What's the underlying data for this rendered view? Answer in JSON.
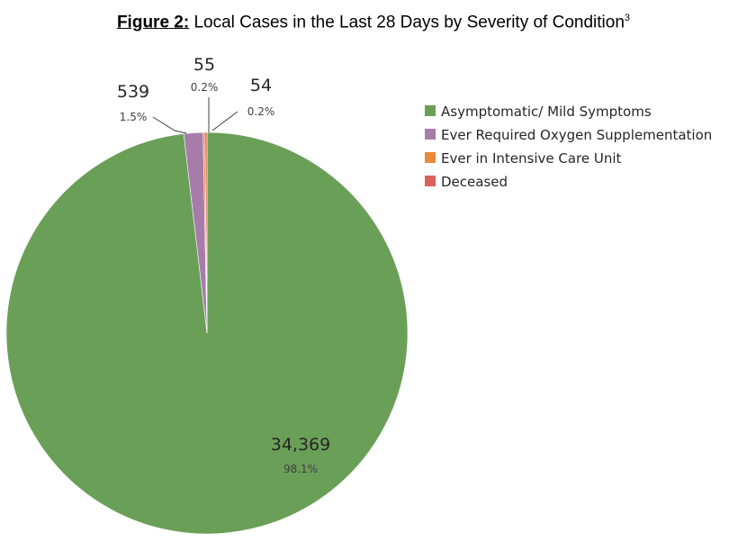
{
  "title": {
    "figure_label": "Figure 2:",
    "text": "Local Cases in the Last 28 Days by Severity of Condition",
    "footnote": "3"
  },
  "chart_data": {
    "type": "pie",
    "title": "Figure 2: Local Cases in the Last 28 Days by Severity of Condition",
    "legend_position": "right",
    "slices": [
      {
        "name": "Asymptomatic/ Mild Symptoms",
        "value": 34369,
        "value_label": "34,369",
        "percent_label": "98.1%",
        "color": "#6a9f58"
      },
      {
        "name": "Ever Required Oxygen Supplementation",
        "value": 539,
        "value_label": "539",
        "percent_label": "1.5%",
        "color": "#a77cab"
      },
      {
        "name": "Ever in Intensive Care Unit",
        "value": 55,
        "value_label": "55",
        "percent_label": "0.2%",
        "color": "#e9893c"
      },
      {
        "name": "Deceased",
        "value": 54,
        "value_label": "54",
        "percent_label": "0.2%",
        "color": "#d9625a"
      }
    ]
  }
}
